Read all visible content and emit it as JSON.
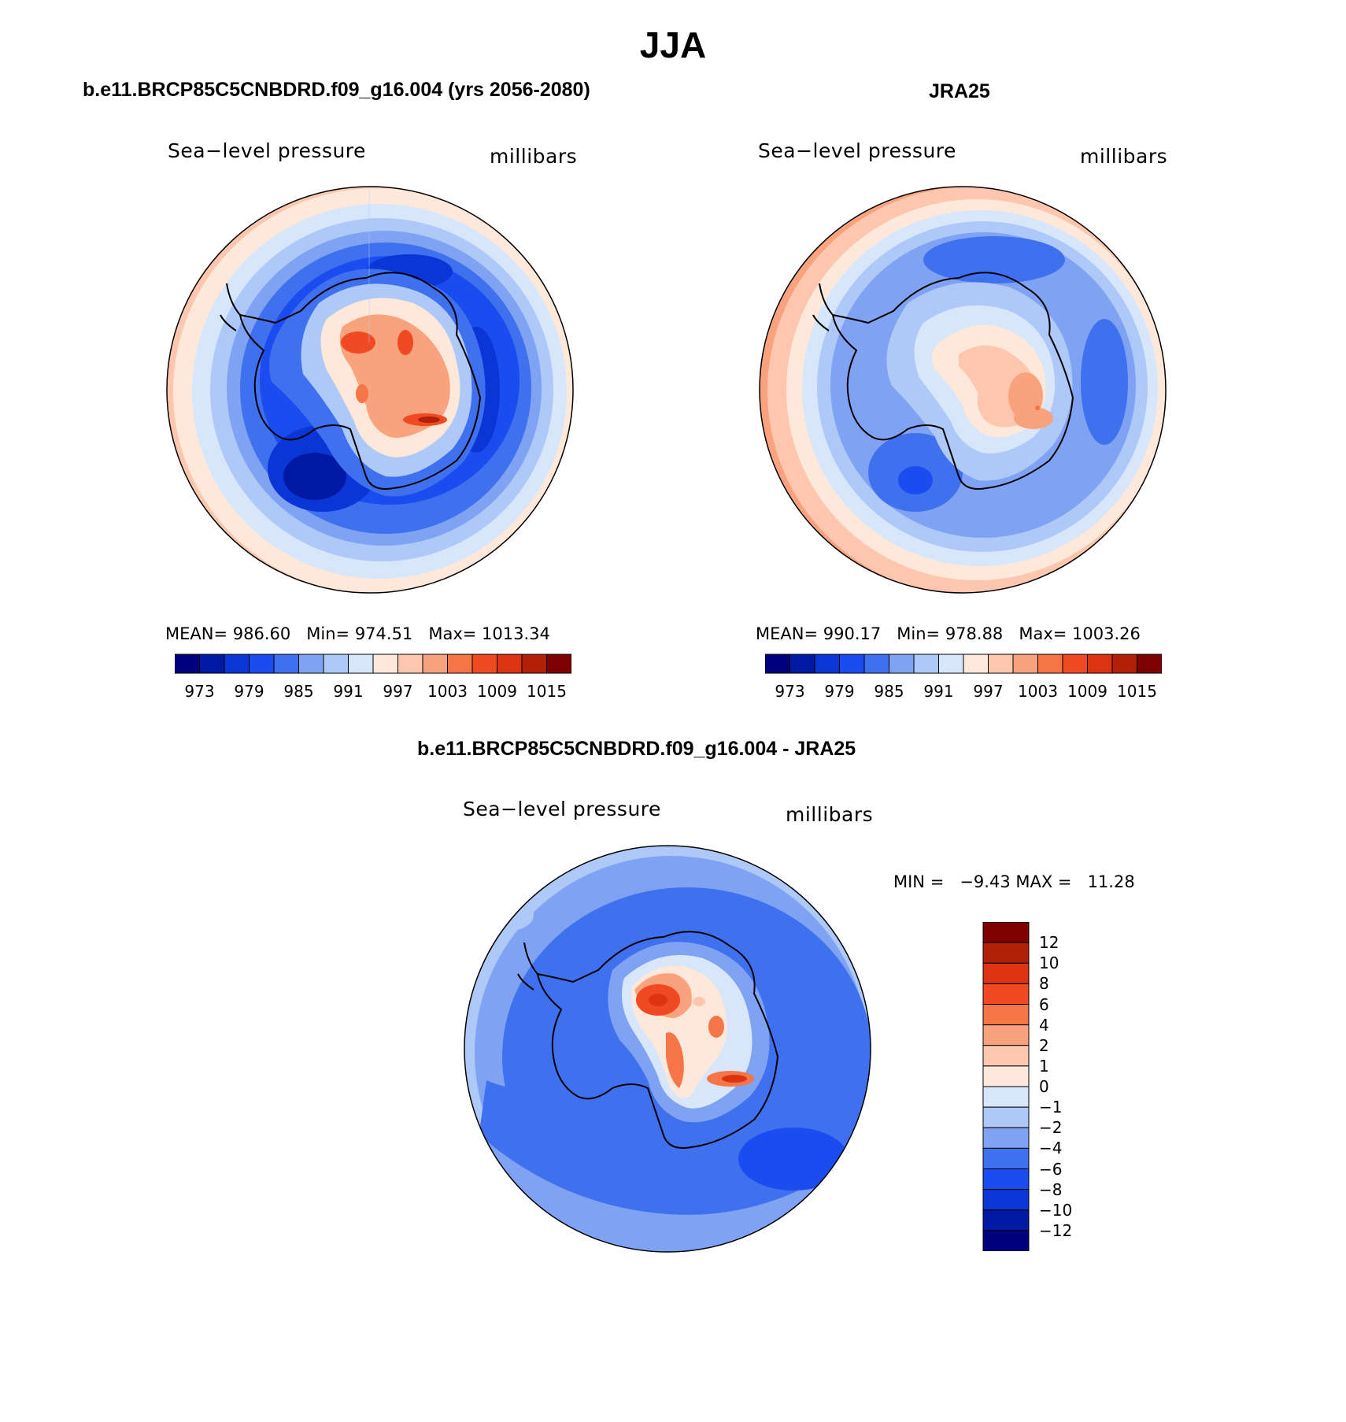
{
  "figure": {
    "title": "JJA"
  },
  "panels": [
    {
      "title": "b.e11.BRCP85C5CNBDRD.f09_g16.004 (yrs 2056-2080)",
      "variable": "Sea−level pressure",
      "units": "millibars",
      "stats": {
        "mean_label": "MEAN=",
        "mean": "986.60",
        "min_label": "Min=",
        "min": "974.51",
        "max_label": "Max=",
        "max": "1013.34"
      },
      "colorbar_ticks": [
        "973",
        "979",
        "985",
        "991",
        "997",
        "1003",
        "1009",
        "1015"
      ]
    },
    {
      "title": "JRA25",
      "variable": "Sea−level pressure",
      "units": "millibars",
      "stats": {
        "mean_label": "MEAN=",
        "mean": "990.17",
        "min_label": "Min=",
        "min": "978.88",
        "max_label": "Max=",
        "max": "1003.26"
      },
      "colorbar_ticks": [
        "973",
        "979",
        "985",
        "991",
        "997",
        "1003",
        "1009",
        "1015"
      ]
    },
    {
      "title": "b.e11.BRCP85C5CNBDRD.f09_g16.004 - JRA25",
      "variable": "Sea−level pressure",
      "units": "millibars",
      "stats": {
        "min_label": "MIN =",
        "min": "−9.43",
        "max_label": "MAX =",
        "max": "11.28"
      },
      "colorbar_ticks": [
        "12",
        "10",
        "8",
        "6",
        "4",
        "2",
        "1",
        "0",
        "−1",
        "−2",
        "−4",
        "−6",
        "−8",
        "−10",
        "−12"
      ]
    }
  ],
  "palette": {
    "abs_levels": [
      "#00007f",
      "#0019a3",
      "#0a36d6",
      "#1a4cf0",
      "#3f70ee",
      "#7fa3f2",
      "#aec8f7",
      "#d7e6fb",
      "#fde8da",
      "#fcc7ae",
      "#f9a27e",
      "#f57547",
      "#ef4a21",
      "#dc3310",
      "#b3200a",
      "#7f0000"
    ],
    "diff_levels_top_to_bottom": [
      "#7f0000",
      "#b3200a",
      "#dc3310",
      "#ef4a21",
      "#f57547",
      "#f9a27e",
      "#fcc7ae",
      "#fde8da",
      "#d7e6fb",
      "#aec8f7",
      "#7fa3f2",
      "#3f70ee",
      "#1a4cf0",
      "#0a36d6",
      "#0019a3",
      "#00007f"
    ]
  }
}
